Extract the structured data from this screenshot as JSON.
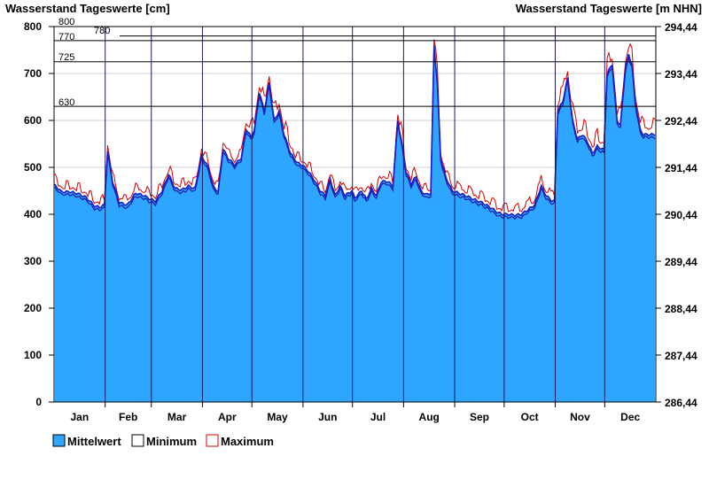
{
  "chart_data": {
    "type": "area",
    "title_left": "Wasserstand Tageswerte [cm]",
    "title_right": "Wasserstand Tageswerte [m NHN]",
    "ylim": [
      0,
      800
    ],
    "y_ticks": [
      0,
      100,
      200,
      300,
      400,
      500,
      600,
      700,
      800
    ],
    "y2_ticks": [
      "286,44",
      "287,44",
      "288,44",
      "289,44",
      "290,44",
      "291,44",
      "292,44",
      "293,44",
      "294,44"
    ],
    "months": [
      "Jan",
      "Feb",
      "Mar",
      "Apr",
      "May",
      "Jun",
      "Jul",
      "Aug",
      "Sep",
      "Oct",
      "Nov",
      "Dec"
    ],
    "month_days": [
      31,
      28,
      31,
      30,
      31,
      30,
      31,
      31,
      30,
      31,
      30,
      31
    ],
    "reference_lines": [
      {
        "value": 800,
        "label": "800"
      },
      {
        "value": 780,
        "label": "780"
      },
      {
        "value": 770,
        "label": "770"
      },
      {
        "value": 725,
        "label": "725"
      },
      {
        "value": 630,
        "label": "630"
      }
    ],
    "grid": true,
    "colors": {
      "mean_fill": "#2ea6ff",
      "minimum": "#1a1aa8",
      "maximum": "#d40000",
      "reference": "#000000",
      "grid": "#cfcfcf"
    },
    "legend_position": "bottom-left",
    "series": [
      {
        "name": "Mittelwert",
        "key": "mean"
      },
      {
        "name": "Minimum",
        "key": "min"
      },
      {
        "name": "Maximum",
        "key": "max"
      }
    ],
    "mean_keypoints": [
      [
        1,
        462
      ],
      [
        5,
        448
      ],
      [
        10,
        448
      ],
      [
        15,
        444
      ],
      [
        20,
        436
      ],
      [
        25,
        418
      ],
      [
        28,
        415
      ],
      [
        31,
        420
      ],
      [
        33,
        535
      ],
      [
        36,
        470
      ],
      [
        40,
        425
      ],
      [
        45,
        420
      ],
      [
        50,
        445
      ],
      [
        55,
        440
      ],
      [
        59,
        432
      ],
      [
        62,
        428
      ],
      [
        66,
        450
      ],
      [
        70,
        485
      ],
      [
        74,
        455
      ],
      [
        78,
        452
      ],
      [
        82,
        460
      ],
      [
        86,
        455
      ],
      [
        90,
        525
      ],
      [
        94,
        500
      ],
      [
        97,
        460
      ],
      [
        100,
        448
      ],
      [
        103,
        540
      ],
      [
        106,
        520
      ],
      [
        110,
        505
      ],
      [
        114,
        520
      ],
      [
        117,
        582
      ],
      [
        120,
        565
      ],
      [
        122,
        580
      ],
      [
        125,
        660
      ],
      [
        128,
        620
      ],
      [
        131,
        680
      ],
      [
        134,
        600
      ],
      [
        137,
        620
      ],
      [
        140,
        570
      ],
      [
        144,
        530
      ],
      [
        148,
        510
      ],
      [
        151,
        505
      ],
      [
        154,
        495
      ],
      [
        158,
        475
      ],
      [
        162,
        450
      ],
      [
        165,
        440
      ],
      [
        168,
        475
      ],
      [
        171,
        440
      ],
      [
        174,
        460
      ],
      [
        177,
        440
      ],
      [
        181,
        450
      ],
      [
        183,
        435
      ],
      [
        187,
        450
      ],
      [
        190,
        432
      ],
      [
        193,
        455
      ],
      [
        196,
        440
      ],
      [
        199,
        470
      ],
      [
        203,
        470
      ],
      [
        206,
        460
      ],
      [
        209,
        600
      ],
      [
        212,
        540
      ],
      [
        214,
        490
      ],
      [
        217,
        465
      ],
      [
        220,
        480
      ],
      [
        223,
        450
      ],
      [
        226,
        442
      ],
      [
        229,
        445
      ],
      [
        231,
        760
      ],
      [
        233,
        680
      ],
      [
        235,
        520
      ],
      [
        238,
        480
      ],
      [
        242,
        450
      ],
      [
        246,
        445
      ],
      [
        250,
        440
      ],
      [
        255,
        432
      ],
      [
        260,
        425
      ],
      [
        265,
        415
      ],
      [
        270,
        403
      ],
      [
        273,
        400
      ],
      [
        276,
        400
      ],
      [
        280,
        398
      ],
      [
        284,
        400
      ],
      [
        288,
        410
      ],
      [
        292,
        420
      ],
      [
        296,
        460
      ],
      [
        299,
        440
      ],
      [
        302,
        430
      ],
      [
        304,
        428
      ],
      [
        306,
        620
      ],
      [
        309,
        640
      ],
      [
        312,
        690
      ],
      [
        315,
        600
      ],
      [
        318,
        560
      ],
      [
        321,
        570
      ],
      [
        324,
        555
      ],
      [
        327,
        530
      ],
      [
        330,
        545
      ],
      [
        334,
        537
      ],
      [
        336,
        700
      ],
      [
        339,
        720
      ],
      [
        342,
        600
      ],
      [
        344,
        590
      ],
      [
        347,
        710
      ],
      [
        349,
        740
      ],
      [
        351,
        720
      ],
      [
        353,
        640
      ],
      [
        356,
        580
      ],
      [
        358,
        570
      ],
      [
        365,
        570
      ]
    ]
  }
}
